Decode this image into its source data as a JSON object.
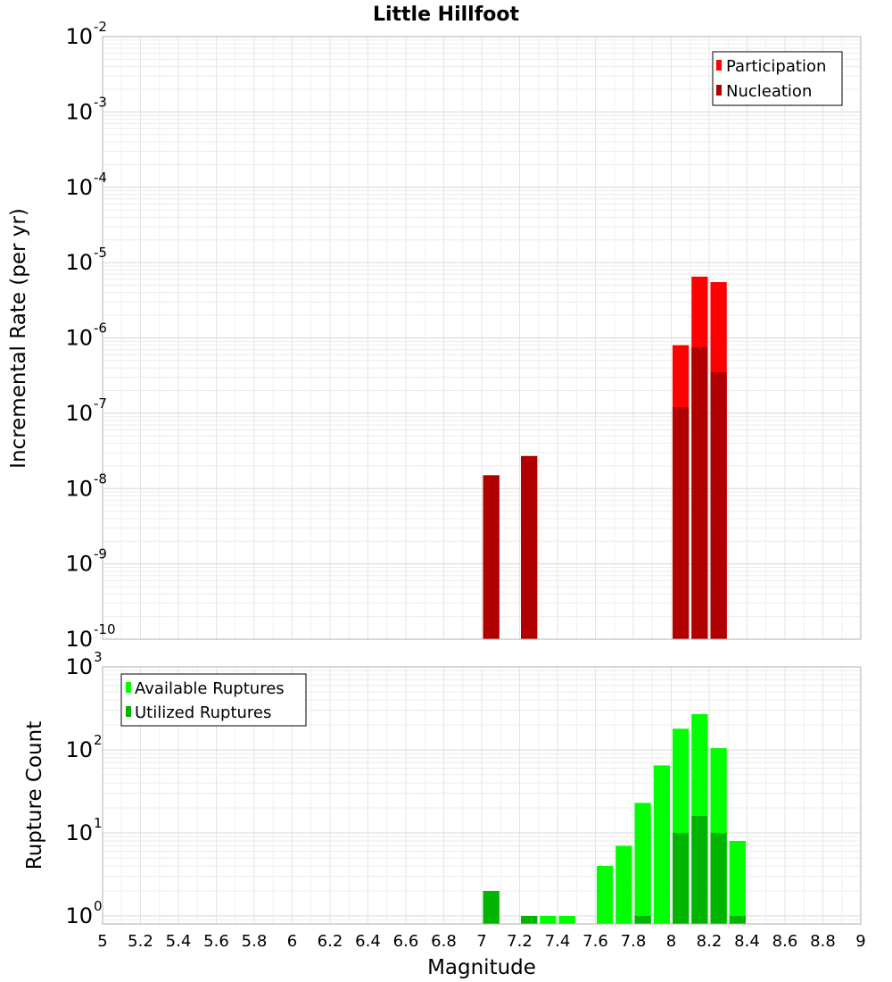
{
  "title": "Little Hillfoot",
  "xlabel": "Magnitude",
  "xticks": [
    "5",
    "5.2",
    "5.4",
    "5.6",
    "5.8",
    "6",
    "6.2",
    "6.4",
    "6.6",
    "6.8",
    "7",
    "7.2",
    "7.4",
    "7.6",
    "7.8",
    "8",
    "8.2",
    "8.4",
    "8.6",
    "8.8",
    "9"
  ],
  "chart_data": [
    {
      "type": "bar",
      "panel": "top",
      "ylabel": "Incremental Rate (per yr)",
      "yscale": "log",
      "xlim": [
        5,
        9
      ],
      "ylim": [
        1e-10,
        0.01
      ],
      "bin_width": 0.1,
      "legend_position": "top-right",
      "grid": true,
      "series": [
        {
          "name": "Participation",
          "color": "#ff0000",
          "x": [
            7.05,
            7.25,
            8.05,
            8.15,
            8.25
          ],
          "values": [
            1.5e-08,
            2.7e-08,
            8e-07,
            6.5e-06,
            5.5e-06
          ]
        },
        {
          "name": "Nucleation",
          "color": "#b00000",
          "x": [
            7.05,
            7.25,
            8.05,
            8.15,
            8.25
          ],
          "values": [
            1.5e-08,
            2.7e-08,
            1.2e-07,
            7.5e-07,
            3.5e-07
          ]
        }
      ]
    },
    {
      "type": "bar",
      "panel": "bottom",
      "ylabel": "Rupture Count",
      "yscale": "log",
      "xlim": [
        5,
        9
      ],
      "ylim": [
        0.8,
        1000
      ],
      "bin_width": 0.1,
      "legend_position": "top-left",
      "grid": true,
      "series": [
        {
          "name": "Available Ruptures",
          "color": "#00ff00",
          "x": [
            7.05,
            7.25,
            7.35,
            7.45,
            7.65,
            7.75,
            7.85,
            7.95,
            8.05,
            8.15,
            8.25,
            8.35
          ],
          "values": [
            2,
            1,
            1,
            1,
            4,
            7,
            23,
            65,
            180,
            270,
            105,
            8
          ]
        },
        {
          "name": "Utilized Ruptures",
          "color": "#00b400",
          "x": [
            7.05,
            7.25,
            7.85,
            8.05,
            8.15,
            8.25,
            8.35
          ],
          "values": [
            2,
            1,
            1,
            10,
            16,
            10,
            1
          ]
        }
      ]
    }
  ]
}
